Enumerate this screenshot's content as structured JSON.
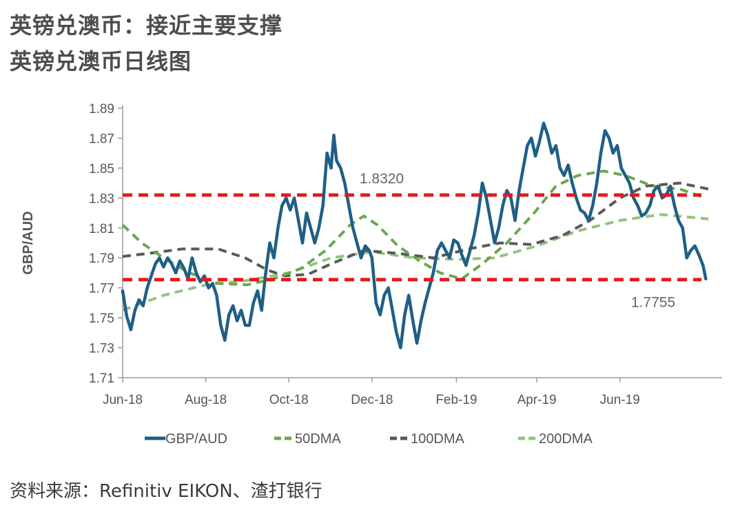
{
  "header": {
    "title": "英镑兑澳币：接近主要支撑",
    "subtitle": "英镑兑澳币日线图"
  },
  "footer": {
    "source": "资料来源：Refinitiv EIKON、渣打银行"
  },
  "colors": {
    "gbpaud": "#1f5f86",
    "dma50": "#6aa84f",
    "dma100": "#595959",
    "dma200": "#93c47d",
    "level": "#e31a1c"
  },
  "chart_data": {
    "type": "line",
    "ylabel": "GBP/AUD",
    "ylim": [
      1.71,
      1.89
    ],
    "yticks": [
      "1.89",
      "1.87",
      "1.85",
      "1.83",
      "1.81",
      "1.79",
      "1.77",
      "1.75",
      "1.73",
      "1.71"
    ],
    "xlim": [
      "2018-06-01",
      "2019-08-15"
    ],
    "xticks": [
      {
        "date": "2018-06-01",
        "label": "Jun-18"
      },
      {
        "date": "2018-08-01",
        "label": "Aug-18"
      },
      {
        "date": "2018-10-01",
        "label": "Oct-18"
      },
      {
        "date": "2018-12-01",
        "label": "Dec-18"
      },
      {
        "date": "2019-02-01",
        "label": "Feb-19"
      },
      {
        "date": "2019-04-01",
        "label": "Apr-19"
      },
      {
        "date": "2019-06-01",
        "label": "Jun-19"
      }
    ],
    "levels": [
      {
        "value": 1.832,
        "label": "1.8320"
      },
      {
        "value": 1.7755,
        "label": "1.7755"
      }
    ],
    "series": [
      {
        "name": "GBP/AUD",
        "key": "gbpaud",
        "points": [
          [
            "2018-06-01",
            1.768
          ],
          [
            "2018-06-04",
            1.751
          ],
          [
            "2018-06-07",
            1.742
          ],
          [
            "2018-06-10",
            1.755
          ],
          [
            "2018-06-13",
            1.762
          ],
          [
            "2018-06-16",
            1.758
          ],
          [
            "2018-06-19",
            1.77
          ],
          [
            "2018-06-22",
            1.778
          ],
          [
            "2018-06-25",
            1.786
          ],
          [
            "2018-06-28",
            1.79
          ],
          [
            "2018-07-01",
            1.784
          ],
          [
            "2018-07-04",
            1.79
          ],
          [
            "2018-07-07",
            1.786
          ],
          [
            "2018-07-10",
            1.78
          ],
          [
            "2018-07-13",
            1.788
          ],
          [
            "2018-07-16",
            1.783
          ],
          [
            "2018-07-19",
            1.776
          ],
          [
            "2018-07-22",
            1.79
          ],
          [
            "2018-07-25",
            1.78
          ],
          [
            "2018-07-28",
            1.774
          ],
          [
            "2018-07-31",
            1.778
          ],
          [
            "2018-08-03",
            1.77
          ],
          [
            "2018-08-06",
            1.773
          ],
          [
            "2018-08-09",
            1.765
          ],
          [
            "2018-08-12",
            1.745
          ],
          [
            "2018-08-15",
            1.735
          ],
          [
            "2018-08-18",
            1.752
          ],
          [
            "2018-08-21",
            1.758
          ],
          [
            "2018-08-24",
            1.748
          ],
          [
            "2018-08-27",
            1.755
          ],
          [
            "2018-08-30",
            1.745
          ],
          [
            "2018-09-02",
            1.745
          ],
          [
            "2018-09-05",
            1.76
          ],
          [
            "2018-09-08",
            1.768
          ],
          [
            "2018-09-11",
            1.755
          ],
          [
            "2018-09-14",
            1.78
          ],
          [
            "2018-09-17",
            1.8
          ],
          [
            "2018-09-20",
            1.79
          ],
          [
            "2018-09-23",
            1.81
          ],
          [
            "2018-09-26",
            1.825
          ],
          [
            "2018-09-29",
            1.83
          ],
          [
            "2018-10-02",
            1.822
          ],
          [
            "2018-10-05",
            1.83
          ],
          [
            "2018-10-08",
            1.815
          ],
          [
            "2018-10-11",
            1.8
          ],
          [
            "2018-10-14",
            1.82
          ],
          [
            "2018-10-17",
            1.81
          ],
          [
            "2018-10-20",
            1.8
          ],
          [
            "2018-10-23",
            1.81
          ],
          [
            "2018-10-26",
            1.825
          ],
          [
            "2018-10-29",
            1.86
          ],
          [
            "2018-11-01",
            1.85
          ],
          [
            "2018-11-03",
            1.872
          ],
          [
            "2018-11-05",
            1.855
          ],
          [
            "2018-11-08",
            1.85
          ],
          [
            "2018-11-11",
            1.84
          ],
          [
            "2018-11-14",
            1.825
          ],
          [
            "2018-11-17",
            1.81
          ],
          [
            "2018-11-20",
            1.8
          ],
          [
            "2018-11-23",
            1.79
          ],
          [
            "2018-11-26",
            1.798
          ],
          [
            "2018-11-29",
            1.795
          ],
          [
            "2018-12-01",
            1.79
          ],
          [
            "2018-12-04",
            1.76
          ],
          [
            "2018-12-07",
            1.752
          ],
          [
            "2018-12-10",
            1.765
          ],
          [
            "2018-12-13",
            1.77
          ],
          [
            "2018-12-16",
            1.755
          ],
          [
            "2018-12-19",
            1.74
          ],
          [
            "2018-12-22",
            1.73
          ],
          [
            "2018-12-25",
            1.752
          ],
          [
            "2018-12-28",
            1.765
          ],
          [
            "2018-12-31",
            1.748
          ],
          [
            "2019-01-03",
            1.733
          ],
          [
            "2019-01-06",
            1.748
          ],
          [
            "2019-01-09",
            1.76
          ],
          [
            "2019-01-12",
            1.77
          ],
          [
            "2019-01-15",
            1.78
          ],
          [
            "2019-01-18",
            1.795
          ],
          [
            "2019-01-21",
            1.8
          ],
          [
            "2019-01-24",
            1.795
          ],
          [
            "2019-01-27",
            1.79
          ],
          [
            "2019-01-30",
            1.802
          ],
          [
            "2019-02-02",
            1.8
          ],
          [
            "2019-02-05",
            1.792
          ],
          [
            "2019-02-08",
            1.785
          ],
          [
            "2019-02-11",
            1.795
          ],
          [
            "2019-02-14",
            1.805
          ],
          [
            "2019-02-17",
            1.82
          ],
          [
            "2019-02-20",
            1.84
          ],
          [
            "2019-02-23",
            1.83
          ],
          [
            "2019-02-26",
            1.815
          ],
          [
            "2019-03-01",
            1.8
          ],
          [
            "2019-03-04",
            1.81
          ],
          [
            "2019-03-07",
            1.825
          ],
          [
            "2019-03-10",
            1.835
          ],
          [
            "2019-03-13",
            1.83
          ],
          [
            "2019-03-16",
            1.815
          ],
          [
            "2019-03-19",
            1.835
          ],
          [
            "2019-03-22",
            1.85
          ],
          [
            "2019-03-25",
            1.865
          ],
          [
            "2019-03-28",
            1.87
          ],
          [
            "2019-03-31",
            1.858
          ],
          [
            "2019-04-03",
            1.868
          ],
          [
            "2019-04-06",
            1.88
          ],
          [
            "2019-04-09",
            1.872
          ],
          [
            "2019-04-12",
            1.86
          ],
          [
            "2019-04-15",
            1.865
          ],
          [
            "2019-04-18",
            1.85
          ],
          [
            "2019-04-21",
            1.845
          ],
          [
            "2019-04-24",
            1.852
          ],
          [
            "2019-04-27",
            1.84
          ],
          [
            "2019-04-30",
            1.83
          ],
          [
            "2019-05-03",
            1.822
          ],
          [
            "2019-05-06",
            1.82
          ],
          [
            "2019-05-09",
            1.815
          ],
          [
            "2019-05-12",
            1.825
          ],
          [
            "2019-05-15",
            1.84
          ],
          [
            "2019-05-18",
            1.86
          ],
          [
            "2019-05-21",
            1.875
          ],
          [
            "2019-05-24",
            1.87
          ],
          [
            "2019-05-27",
            1.86
          ],
          [
            "2019-05-30",
            1.865
          ],
          [
            "2019-06-02",
            1.85
          ],
          [
            "2019-06-05",
            1.845
          ],
          [
            "2019-06-08",
            1.84
          ],
          [
            "2019-06-11",
            1.83
          ],
          [
            "2019-06-14",
            1.825
          ],
          [
            "2019-06-17",
            1.818
          ],
          [
            "2019-06-20",
            1.82
          ],
          [
            "2019-06-23",
            1.825
          ],
          [
            "2019-06-26",
            1.835
          ],
          [
            "2019-06-29",
            1.838
          ],
          [
            "2019-07-02",
            1.83
          ],
          [
            "2019-07-05",
            1.832
          ],
          [
            "2019-07-08",
            1.838
          ],
          [
            "2019-07-11",
            1.825
          ],
          [
            "2019-07-14",
            1.815
          ],
          [
            "2019-07-17",
            1.81
          ],
          [
            "2019-07-20",
            1.79
          ],
          [
            "2019-07-23",
            1.795
          ],
          [
            "2019-07-26",
            1.798
          ],
          [
            "2019-07-29",
            1.792
          ],
          [
            "2019-08-01",
            1.785
          ],
          [
            "2019-08-03",
            1.776
          ]
        ]
      },
      {
        "name": "50DMA",
        "key": "dma50",
        "points": [
          [
            "2018-06-01",
            1.812
          ],
          [
            "2018-06-15",
            1.8
          ],
          [
            "2018-07-01",
            1.79
          ],
          [
            "2018-07-20",
            1.78
          ],
          [
            "2018-08-10",
            1.773
          ],
          [
            "2018-08-31",
            1.772
          ],
          [
            "2018-09-20",
            1.776
          ],
          [
            "2018-10-10",
            1.783
          ],
          [
            "2018-10-28",
            1.795
          ],
          [
            "2018-11-15",
            1.812
          ],
          [
            "2018-11-25",
            1.818
          ],
          [
            "2018-12-05",
            1.812
          ],
          [
            "2018-12-20",
            1.798
          ],
          [
            "2019-01-05",
            1.788
          ],
          [
            "2019-01-20",
            1.78
          ],
          [
            "2019-02-05",
            1.776
          ],
          [
            "2019-02-20",
            1.786
          ],
          [
            "2019-03-10",
            1.8
          ],
          [
            "2019-03-30",
            1.82
          ],
          [
            "2019-04-15",
            1.838
          ],
          [
            "2019-05-01",
            1.845
          ],
          [
            "2019-05-20",
            1.848
          ],
          [
            "2019-06-05",
            1.845
          ],
          [
            "2019-06-25",
            1.838
          ],
          [
            "2019-07-15",
            1.836
          ],
          [
            "2019-08-03",
            1.83
          ]
        ]
      },
      {
        "name": "100DMA",
        "key": "dma100",
        "points": [
          [
            "2018-06-01",
            1.791
          ],
          [
            "2018-06-20",
            1.793
          ],
          [
            "2018-07-15",
            1.796
          ],
          [
            "2018-08-10",
            1.796
          ],
          [
            "2018-08-30",
            1.79
          ],
          [
            "2018-09-15",
            1.782
          ],
          [
            "2018-09-28",
            1.778
          ],
          [
            "2018-10-15",
            1.779
          ],
          [
            "2018-11-01",
            1.786
          ],
          [
            "2018-11-25",
            1.795
          ],
          [
            "2018-12-20",
            1.793
          ],
          [
            "2019-01-15",
            1.79
          ],
          [
            "2019-02-10",
            1.796
          ],
          [
            "2019-03-05",
            1.8
          ],
          [
            "2019-03-28",
            1.799
          ],
          [
            "2019-04-20",
            1.805
          ],
          [
            "2019-05-10",
            1.815
          ],
          [
            "2019-06-01",
            1.83
          ],
          [
            "2019-06-20",
            1.838
          ],
          [
            "2019-07-15",
            1.84
          ],
          [
            "2019-08-05",
            1.836
          ]
        ]
      },
      {
        "name": "200DMA",
        "key": "dma200",
        "points": [
          [
            "2018-06-01",
            1.755
          ],
          [
            "2018-07-01",
            1.765
          ],
          [
            "2018-08-01",
            1.772
          ],
          [
            "2018-09-01",
            1.775
          ],
          [
            "2018-10-01",
            1.78
          ],
          [
            "2018-11-01",
            1.79
          ],
          [
            "2018-12-01",
            1.794
          ],
          [
            "2019-01-01",
            1.79
          ],
          [
            "2019-02-01",
            1.789
          ],
          [
            "2019-03-01",
            1.79
          ],
          [
            "2019-04-01",
            1.798
          ],
          [
            "2019-05-01",
            1.808
          ],
          [
            "2019-06-01",
            1.815
          ],
          [
            "2019-07-01",
            1.819
          ],
          [
            "2019-08-05",
            1.816
          ]
        ]
      }
    ]
  }
}
